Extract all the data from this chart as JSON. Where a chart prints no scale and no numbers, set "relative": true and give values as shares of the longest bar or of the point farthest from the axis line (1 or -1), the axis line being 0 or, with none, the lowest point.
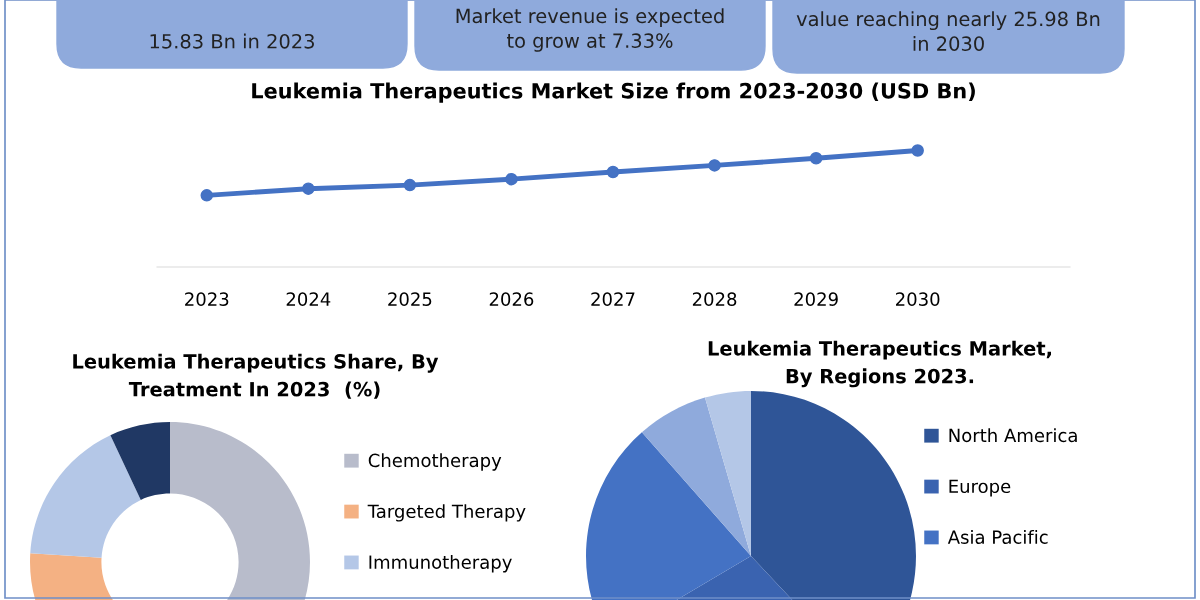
{
  "chart_data": [
    {
      "type": "line",
      "title": "Leukemia Therapeutics Market Size from 2023-2030 (USD Bn)",
      "categories": [
        "2023",
        "2024",
        "2025",
        "2026",
        "2027",
        "2028",
        "2029",
        "2030"
      ],
      "relative": true,
      "series": [
        {
          "color": "#4472c4",
          "values": [
            0.615,
            0.672,
            0.703,
            0.754,
            0.815,
            0.872,
            0.933,
            1
          ]
        }
      ],
      "marker": "circle",
      "line_style": "solid",
      "grid": false,
      "annotations": [
        "15.83 Bn in 2023",
        "Market revenue is expected\nto grow at 7.33%",
        "value reaching nearly 25.98 Bn\nin 2030"
      ]
    },
    {
      "type": "donut",
      "title": "Leukemia Therapeutics Share, By\nTreatment In 2023  (%)",
      "categories": [
        "Chemotherapy",
        "Targeted Therapy",
        "Immunotherapy",
        null
      ],
      "values": [
        50,
        26,
        17,
        7
      ],
      "colors": [
        "#b8bccb",
        "#f4b183",
        "#b4c7e7",
        "#203864"
      ],
      "legend": "right"
    },
    {
      "type": "pie",
      "title": "Leukemia Therapeutics Market,\nBy Regions 2023.",
      "categories": [
        "North America",
        "Europe",
        "Asia Pacific",
        null,
        null
      ],
      "values": [
        38,
        28.5,
        22,
        7,
        4.5
      ],
      "colors": [
        "#2f5597",
        "#3a63b0",
        "#4472c4",
        "#8faadc",
        "#b4c7e7"
      ],
      "legend": "right"
    }
  ]
}
